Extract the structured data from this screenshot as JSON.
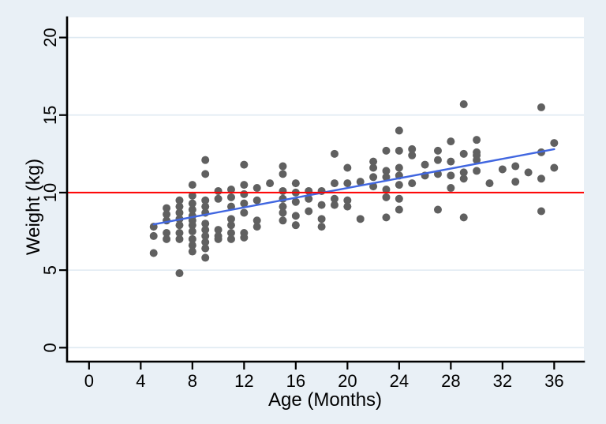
{
  "page": {
    "background_color": "#e9f0f6"
  },
  "chart_data": {
    "type": "scatter",
    "title": "",
    "xlabel": "Age (Months)",
    "ylabel": "Weight (kg)",
    "xlim": [
      -1.7,
      38.3
    ],
    "ylim": [
      -0.9,
      21.3
    ],
    "x_ticks": [
      0,
      4,
      8,
      12,
      16,
      20,
      24,
      28,
      32,
      36
    ],
    "y_ticks": [
      0,
      5,
      10,
      15,
      20
    ],
    "grid": "horizontal",
    "legend": "none",
    "plot_background_color": "#ffffff",
    "grid_color": "#dfeaf2",
    "axis_color": "#000000",
    "series": [
      {
        "name": "weight-observations",
        "type": "scatter",
        "color": "#606060",
        "marker": "circle",
        "marker_radius": 5,
        "points": [
          [
            5,
            7.8
          ],
          [
            5,
            7.2
          ],
          [
            5,
            6.1
          ],
          [
            6,
            9.0
          ],
          [
            6,
            8.6
          ],
          [
            6,
            8.2
          ],
          [
            6,
            7.4
          ],
          [
            6,
            7.0
          ],
          [
            7,
            9.5
          ],
          [
            7,
            9.1
          ],
          [
            7,
            8.7
          ],
          [
            7,
            8.3
          ],
          [
            7,
            7.9
          ],
          [
            7,
            7.4
          ],
          [
            7,
            7.0
          ],
          [
            7,
            4.8
          ],
          [
            8,
            10.5
          ],
          [
            8,
            9.8
          ],
          [
            8,
            9.3
          ],
          [
            8,
            8.9
          ],
          [
            8,
            8.5
          ],
          [
            8,
            8.2
          ],
          [
            8,
            7.9
          ],
          [
            8,
            7.5
          ],
          [
            8,
            7.0
          ],
          [
            8,
            6.6
          ],
          [
            8,
            6.2
          ],
          [
            9,
            12.1
          ],
          [
            9,
            11.2
          ],
          [
            9,
            9.5
          ],
          [
            9,
            9.1
          ],
          [
            9,
            8.7
          ],
          [
            9,
            8.0
          ],
          [
            9,
            7.6
          ],
          [
            9,
            7.2
          ],
          [
            9,
            6.8
          ],
          [
            9,
            6.4
          ],
          [
            9,
            5.8
          ],
          [
            10,
            10.1
          ],
          [
            10,
            9.6
          ],
          [
            10,
            7.6
          ],
          [
            10,
            7.2
          ],
          [
            10,
            7.0
          ],
          [
            11,
            10.2
          ],
          [
            11,
            9.7
          ],
          [
            11,
            9.1
          ],
          [
            11,
            8.3
          ],
          [
            11,
            7.9
          ],
          [
            11,
            7.4
          ],
          [
            11,
            7.0
          ],
          [
            12,
            11.8
          ],
          [
            12,
            10.5
          ],
          [
            12,
            9.9
          ],
          [
            12,
            9.3
          ],
          [
            12,
            8.7
          ],
          [
            12,
            7.4
          ],
          [
            12,
            7.1
          ],
          [
            13,
            10.3
          ],
          [
            13,
            9.5
          ],
          [
            13,
            8.2
          ],
          [
            13,
            7.8
          ],
          [
            14,
            10.6
          ],
          [
            15,
            11.7
          ],
          [
            15,
            11.2
          ],
          [
            15,
            10.1
          ],
          [
            15,
            9.6
          ],
          [
            15,
            9.1
          ],
          [
            15,
            8.7
          ],
          [
            15,
            8.2
          ],
          [
            16,
            10.6
          ],
          [
            16,
            10.0
          ],
          [
            16,
            9.4
          ],
          [
            16,
            8.5
          ],
          [
            16,
            7.9
          ],
          [
            17,
            10.1
          ],
          [
            17,
            9.6
          ],
          [
            17,
            8.8
          ],
          [
            18,
            10.1
          ],
          [
            18,
            9.2
          ],
          [
            18,
            8.3
          ],
          [
            18,
            7.8
          ],
          [
            19,
            12.5
          ],
          [
            19,
            10.6
          ],
          [
            19,
            9.6
          ],
          [
            19,
            9.2
          ],
          [
            20,
            11.6
          ],
          [
            20,
            10.6
          ],
          [
            20,
            9.5
          ],
          [
            20,
            9.1
          ],
          [
            21,
            10.7
          ],
          [
            21,
            8.3
          ],
          [
            22,
            12.0
          ],
          [
            22,
            11.6
          ],
          [
            22,
            11.0
          ],
          [
            22,
            10.4
          ],
          [
            23,
            12.7
          ],
          [
            23,
            11.4
          ],
          [
            23,
            11.0
          ],
          [
            23,
            10.2
          ],
          [
            23,
            9.7
          ],
          [
            23,
            8.4
          ],
          [
            24,
            14.0
          ],
          [
            24,
            12.7
          ],
          [
            24,
            11.6
          ],
          [
            24,
            11.1
          ],
          [
            24,
            10.5
          ],
          [
            24,
            9.6
          ],
          [
            24,
            8.9
          ],
          [
            25,
            12.8
          ],
          [
            25,
            12.4
          ],
          [
            25,
            10.6
          ],
          [
            26,
            11.8
          ],
          [
            26,
            11.1
          ],
          [
            27,
            12.7
          ],
          [
            27,
            12.1
          ],
          [
            27,
            11.2
          ],
          [
            27,
            8.9
          ],
          [
            28,
            13.3
          ],
          [
            28,
            12.0
          ],
          [
            28,
            11.1
          ],
          [
            28,
            10.3
          ],
          [
            29,
            15.7
          ],
          [
            29,
            12.5
          ],
          [
            29,
            11.3
          ],
          [
            29,
            10.9
          ],
          [
            29,
            8.4
          ],
          [
            30,
            13.4
          ],
          [
            30,
            12.6
          ],
          [
            30,
            12.4
          ],
          [
            30,
            12.1
          ],
          [
            30,
            11.4
          ],
          [
            31,
            10.6
          ],
          [
            32,
            11.5
          ],
          [
            33,
            11.7
          ],
          [
            33,
            10.7
          ],
          [
            34,
            11.3
          ],
          [
            35,
            15.5
          ],
          [
            35,
            12.6
          ],
          [
            35,
            10.9
          ],
          [
            35,
            8.8
          ],
          [
            36,
            13.2
          ],
          [
            36,
            11.6
          ]
        ]
      },
      {
        "name": "linear-fit-line",
        "type": "line",
        "color": "#4066e0",
        "width": 2.4,
        "points": [
          [
            5,
            7.95
          ],
          [
            36,
            12.8
          ]
        ]
      },
      {
        "name": "reference-line-y10",
        "type": "hline",
        "color": "#ff0000",
        "width": 2,
        "y": 10
      }
    ]
  }
}
